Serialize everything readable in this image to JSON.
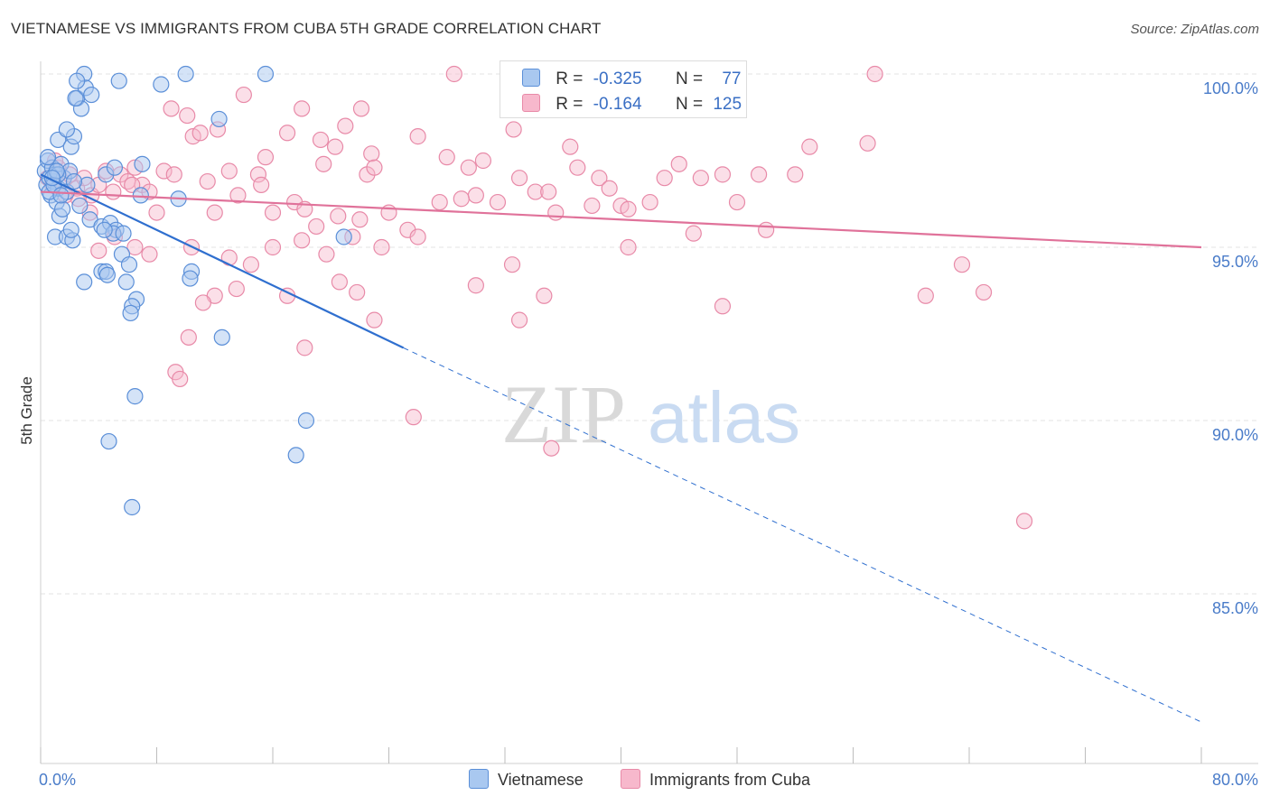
{
  "title": "VIETNAMESE VS IMMIGRANTS FROM CUBA 5TH GRADE CORRELATION CHART",
  "source": "Source: ZipAtlas.com",
  "watermark": {
    "zip": "ZIP",
    "atlas": "atlas"
  },
  "legend": {
    "r_label": "R =",
    "n_label": "N =",
    "series1": {
      "r": "-0.325",
      "n": "77"
    },
    "series2": {
      "r": "-0.164",
      "n": "125"
    }
  },
  "bottom_legend": {
    "series1": "Vietnamese",
    "series2": "Immigrants from Cuba"
  },
  "colors": {
    "blue_fill": "#a9c8f0",
    "blue_stroke": "#5b8fd8",
    "blue_line": "#2f6fcf",
    "pink_fill": "#f7b8cc",
    "pink_stroke": "#e88aa8",
    "pink_line": "#e0729a",
    "tick_text": "#4a7cc9",
    "grid": "#e3e3e3"
  },
  "chart_data": {
    "type": "scatter",
    "title": "VIETNAMESE VS IMMIGRANTS FROM CUBA 5TH GRADE CORRELATION CHART",
    "xlabel": "",
    "ylabel": "5th Grade",
    "xlim": [
      0,
      80
    ],
    "ylim": [
      80.5,
      101.0
    ],
    "x_tick_labels": [
      {
        "value": 0,
        "label": "0.0%"
      },
      {
        "value": 80,
        "label": "80.0%"
      }
    ],
    "y_tick_labels": [
      {
        "value": 100,
        "label": "100.0%"
      },
      {
        "value": 95,
        "label": "95.0%"
      },
      {
        "value": 90,
        "label": "90.0%"
      },
      {
        "value": 85,
        "label": "85.0%"
      }
    ],
    "series": [
      {
        "name": "Vietnamese",
        "r": -0.325,
        "n": 77,
        "trend": {
          "x0": 0,
          "y0": 97.1,
          "x1": 25,
          "y1": 92.1,
          "x_end": 80,
          "y_end": 81.3
        },
        "points": [
          [
            0.3,
            97.2
          ],
          [
            0.4,
            96.8
          ],
          [
            0.5,
            97.5
          ],
          [
            0.6,
            97.0
          ],
          [
            0.7,
            96.5
          ],
          [
            0.8,
            97.3
          ],
          [
            0.9,
            96.9
          ],
          [
            1.0,
            97.1
          ],
          [
            1.1,
            96.3
          ],
          [
            1.2,
            96.7
          ],
          [
            1.3,
            95.9
          ],
          [
            1.4,
            97.4
          ],
          [
            1.5,
            96.1
          ],
          [
            1.6,
            97.0
          ],
          [
            1.8,
            96.6
          ],
          [
            2.0,
            97.2
          ],
          [
            0.5,
            97.6
          ],
          [
            1.2,
            98.1
          ],
          [
            2.1,
            97.9
          ],
          [
            2.3,
            98.2
          ],
          [
            2.5,
            99.3
          ],
          [
            2.8,
            99.0
          ],
          [
            3.0,
            100.0
          ],
          [
            3.1,
            99.6
          ],
          [
            2.5,
            99.8
          ],
          [
            3.5,
            99.4
          ],
          [
            2.4,
            99.3
          ],
          [
            1.8,
            98.4
          ],
          [
            5.4,
            99.8
          ],
          [
            8.3,
            99.7
          ],
          [
            10.0,
            100.0
          ],
          [
            15.5,
            100.0
          ],
          [
            12.3,
            98.7
          ],
          [
            7.0,
            97.4
          ],
          [
            4.5,
            97.1
          ],
          [
            5.1,
            97.3
          ],
          [
            3.2,
            96.8
          ],
          [
            6.9,
            96.5
          ],
          [
            9.5,
            96.4
          ],
          [
            2.7,
            96.2
          ],
          [
            3.4,
            95.8
          ],
          [
            4.2,
            95.6
          ],
          [
            4.8,
            95.7
          ],
          [
            5.2,
            95.5
          ],
          [
            5.0,
            95.4
          ],
          [
            4.4,
            95.5
          ],
          [
            1.0,
            95.3
          ],
          [
            1.8,
            95.3
          ],
          [
            2.2,
            95.2
          ],
          [
            2.1,
            95.5
          ],
          [
            5.7,
            95.4
          ],
          [
            5.6,
            94.8
          ],
          [
            6.1,
            94.5
          ],
          [
            4.2,
            94.3
          ],
          [
            4.5,
            94.3
          ],
          [
            4.6,
            94.2
          ],
          [
            10.4,
            94.3
          ],
          [
            10.3,
            94.1
          ],
          [
            5.9,
            94.0
          ],
          [
            3.0,
            94.0
          ],
          [
            6.6,
            93.5
          ],
          [
            6.3,
            93.3
          ],
          [
            6.2,
            93.1
          ],
          [
            12.5,
            92.4
          ],
          [
            20.9,
            95.3
          ],
          [
            6.5,
            90.7
          ],
          [
            18.3,
            90.0
          ],
          [
            17.6,
            89.0
          ],
          [
            4.7,
            89.4
          ],
          [
            6.3,
            87.5
          ],
          [
            1.2,
            97.1
          ],
          [
            2.3,
            96.9
          ],
          [
            0.6,
            96.6
          ],
          [
            0.9,
            96.8
          ],
          [
            1.1,
            97.2
          ],
          [
            1.4,
            96.5
          ],
          [
            0.8,
            97.0
          ]
        ]
      },
      {
        "name": "Immigrants from Cuba",
        "r": -0.164,
        "n": 125,
        "trend": {
          "x0": 0,
          "y0": 96.6,
          "x1": 80,
          "y1": 95.0
        },
        "points": [
          [
            0.5,
            97.0
          ],
          [
            0.8,
            96.8
          ],
          [
            1.2,
            97.3
          ],
          [
            1.5,
            96.9
          ],
          [
            2.0,
            97.1
          ],
          [
            2.5,
            96.7
          ],
          [
            3.0,
            97.0
          ],
          [
            3.5,
            96.5
          ],
          [
            4.0,
            96.8
          ],
          [
            4.5,
            97.2
          ],
          [
            5.0,
            96.6
          ],
          [
            5.5,
            97.1
          ],
          [
            6.0,
            96.9
          ],
          [
            6.5,
            97.3
          ],
          [
            7.0,
            96.8
          ],
          [
            1.0,
            97.5
          ],
          [
            8.5,
            97.2
          ],
          [
            9.0,
            99.0
          ],
          [
            10.5,
            98.2
          ],
          [
            11.0,
            98.3
          ],
          [
            12.2,
            98.4
          ],
          [
            13.0,
            97.2
          ],
          [
            14.0,
            99.4
          ],
          [
            15.0,
            97.1
          ],
          [
            15.5,
            97.6
          ],
          [
            17.0,
            98.3
          ],
          [
            18.0,
            99.0
          ],
          [
            19.3,
            98.1
          ],
          [
            19.5,
            97.4
          ],
          [
            20.3,
            97.9
          ],
          [
            21.0,
            98.5
          ],
          [
            22.5,
            97.1
          ],
          [
            22.8,
            97.7
          ],
          [
            23.0,
            97.3
          ],
          [
            22.1,
            99.0
          ],
          [
            26.0,
            98.2
          ],
          [
            28.0,
            97.6
          ],
          [
            28.5,
            100.0
          ],
          [
            29.5,
            97.3
          ],
          [
            30.5,
            97.5
          ],
          [
            30.0,
            96.5
          ],
          [
            32.6,
            98.4
          ],
          [
            33.0,
            97.0
          ],
          [
            34.1,
            96.6
          ],
          [
            35.0,
            96.6
          ],
          [
            36.5,
            97.9
          ],
          [
            37.0,
            97.3
          ],
          [
            38.5,
            97.0
          ],
          [
            39.2,
            96.7
          ],
          [
            40.0,
            96.2
          ],
          [
            40.5,
            96.1
          ],
          [
            42.0,
            96.3
          ],
          [
            43.0,
            97.0
          ],
          [
            44.0,
            97.4
          ],
          [
            45.5,
            97.0
          ],
          [
            47.0,
            97.1
          ],
          [
            48.0,
            96.3
          ],
          [
            49.5,
            97.1
          ],
          [
            52.0,
            97.1
          ],
          [
            53.0,
            97.9
          ],
          [
            57.0,
            98.0
          ],
          [
            57.5,
            100.0
          ],
          [
            6.3,
            96.8
          ],
          [
            8.0,
            96.0
          ],
          [
            9.2,
            97.1
          ],
          [
            10.1,
            98.8
          ],
          [
            11.5,
            96.9
          ],
          [
            12.0,
            96.0
          ],
          [
            13.6,
            96.5
          ],
          [
            15.2,
            96.8
          ],
          [
            16.0,
            96.0
          ],
          [
            17.5,
            96.3
          ],
          [
            18.2,
            96.1
          ],
          [
            19.0,
            95.6
          ],
          [
            20.5,
            95.9
          ],
          [
            22.0,
            95.8
          ],
          [
            24.0,
            96.0
          ],
          [
            25.3,
            95.5
          ],
          [
            27.5,
            96.3
          ],
          [
            29.0,
            96.4
          ],
          [
            31.5,
            96.3
          ],
          [
            35.5,
            96.0
          ],
          [
            38.0,
            96.2
          ],
          [
            45.0,
            95.4
          ],
          [
            50.0,
            95.5
          ],
          [
            4.0,
            94.9
          ],
          [
            6.5,
            95.0
          ],
          [
            7.5,
            94.8
          ],
          [
            10.4,
            95.0
          ],
          [
            13.0,
            94.7
          ],
          [
            14.5,
            94.5
          ],
          [
            16.0,
            95.0
          ],
          [
            18.0,
            95.2
          ],
          [
            19.7,
            94.8
          ],
          [
            21.5,
            95.3
          ],
          [
            23.5,
            95.0
          ],
          [
            12.0,
            93.6
          ],
          [
            13.5,
            93.8
          ],
          [
            17.0,
            93.6
          ],
          [
            20.6,
            94.0
          ],
          [
            21.8,
            93.7
          ],
          [
            26.0,
            95.3
          ],
          [
            30.0,
            93.9
          ],
          [
            32.5,
            94.5
          ],
          [
            34.7,
            93.6
          ],
          [
            40.5,
            95.0
          ],
          [
            11.2,
            93.4
          ],
          [
            10.2,
            92.4
          ],
          [
            9.3,
            91.4
          ],
          [
            23.0,
            92.9
          ],
          [
            18.2,
            92.1
          ],
          [
            33.0,
            92.9
          ],
          [
            47.0,
            93.3
          ],
          [
            61.0,
            93.6
          ],
          [
            63.5,
            94.5
          ],
          [
            65.0,
            93.7
          ],
          [
            9.6,
            91.2
          ],
          [
            25.7,
            90.1
          ],
          [
            35.2,
            89.2
          ],
          [
            67.8,
            87.1
          ],
          [
            3.4,
            96.0
          ],
          [
            5.1,
            95.3
          ],
          [
            7.5,
            96.6
          ],
          [
            2.6,
            96.4
          ],
          [
            1.7,
            96.5
          ]
        ]
      }
    ]
  }
}
